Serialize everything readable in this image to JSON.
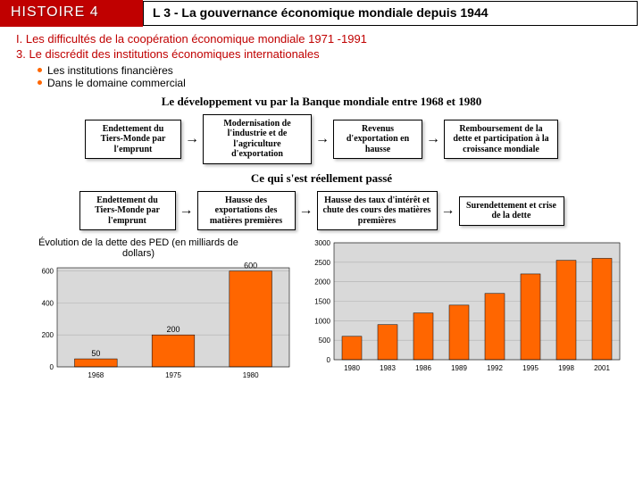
{
  "header": {
    "left": "HISTOIRE 4",
    "right": "L 3 - La gouvernance économique mondiale depuis 1944"
  },
  "section": {
    "line1": "I. Les difficultés de la coopération économique mondiale 1971 -1991",
    "line2": "3. Le discrédit des institutions économiques internationales",
    "bullet1": "Les institutions financières",
    "bullet2": "Dans le domaine commercial"
  },
  "sub1": "Le développement vu par la Banque mondiale entre 1968 et 1980",
  "sub2": "Ce qui s'est réellement passé",
  "flow1": {
    "b1": "Endettement du Tiers-Monde par l'emprunt",
    "b2": "Modernisation de l'industrie et de l'agriculture d'exportation",
    "b3": "Revenus d'exportation en hausse",
    "b4": "Remboursement de la dette et participation à la croissance mondiale"
  },
  "flow2": {
    "b1": "Endettement du Tiers-Monde par l'emprunt",
    "b2": "Hausse des exportations des matières premières",
    "b3": "Hausse des taux d'intérêt et chute des cours des matières premières",
    "b4": "Surendettement et crise de la dette"
  },
  "chart_left": {
    "title": "Évolution de la dette des PED (en milliards de dollars)",
    "type": "bar",
    "categories": [
      "1968",
      "1975",
      "1980"
    ],
    "values": [
      50,
      200,
      600
    ],
    "value_labels": [
      "50",
      "200",
      "600"
    ],
    "yticks": [
      0,
      200,
      400,
      600
    ],
    "ylim": [
      0,
      620
    ],
    "bar_color": "#ff6600",
    "bg_color": "#d9d9d9",
    "grid_color": "#b0b0b0",
    "label_fontsize": 9,
    "axis_fontsize": 8
  },
  "chart_right": {
    "type": "bar",
    "categories": [
      "1980",
      "1983",
      "1986",
      "1989",
      "1992",
      "1995",
      "1998",
      "2001"
    ],
    "values": [
      600,
      900,
      1200,
      1400,
      1700,
      2200,
      2550,
      2600
    ],
    "yticks": [
      0,
      500,
      1000,
      1500,
      2000,
      2500,
      3000
    ],
    "ylim": [
      0,
      3000
    ],
    "bar_color": "#ff6600",
    "bg_color": "#d9d9d9",
    "grid_color": "#b0b0b0",
    "axis_fontsize": 8
  }
}
